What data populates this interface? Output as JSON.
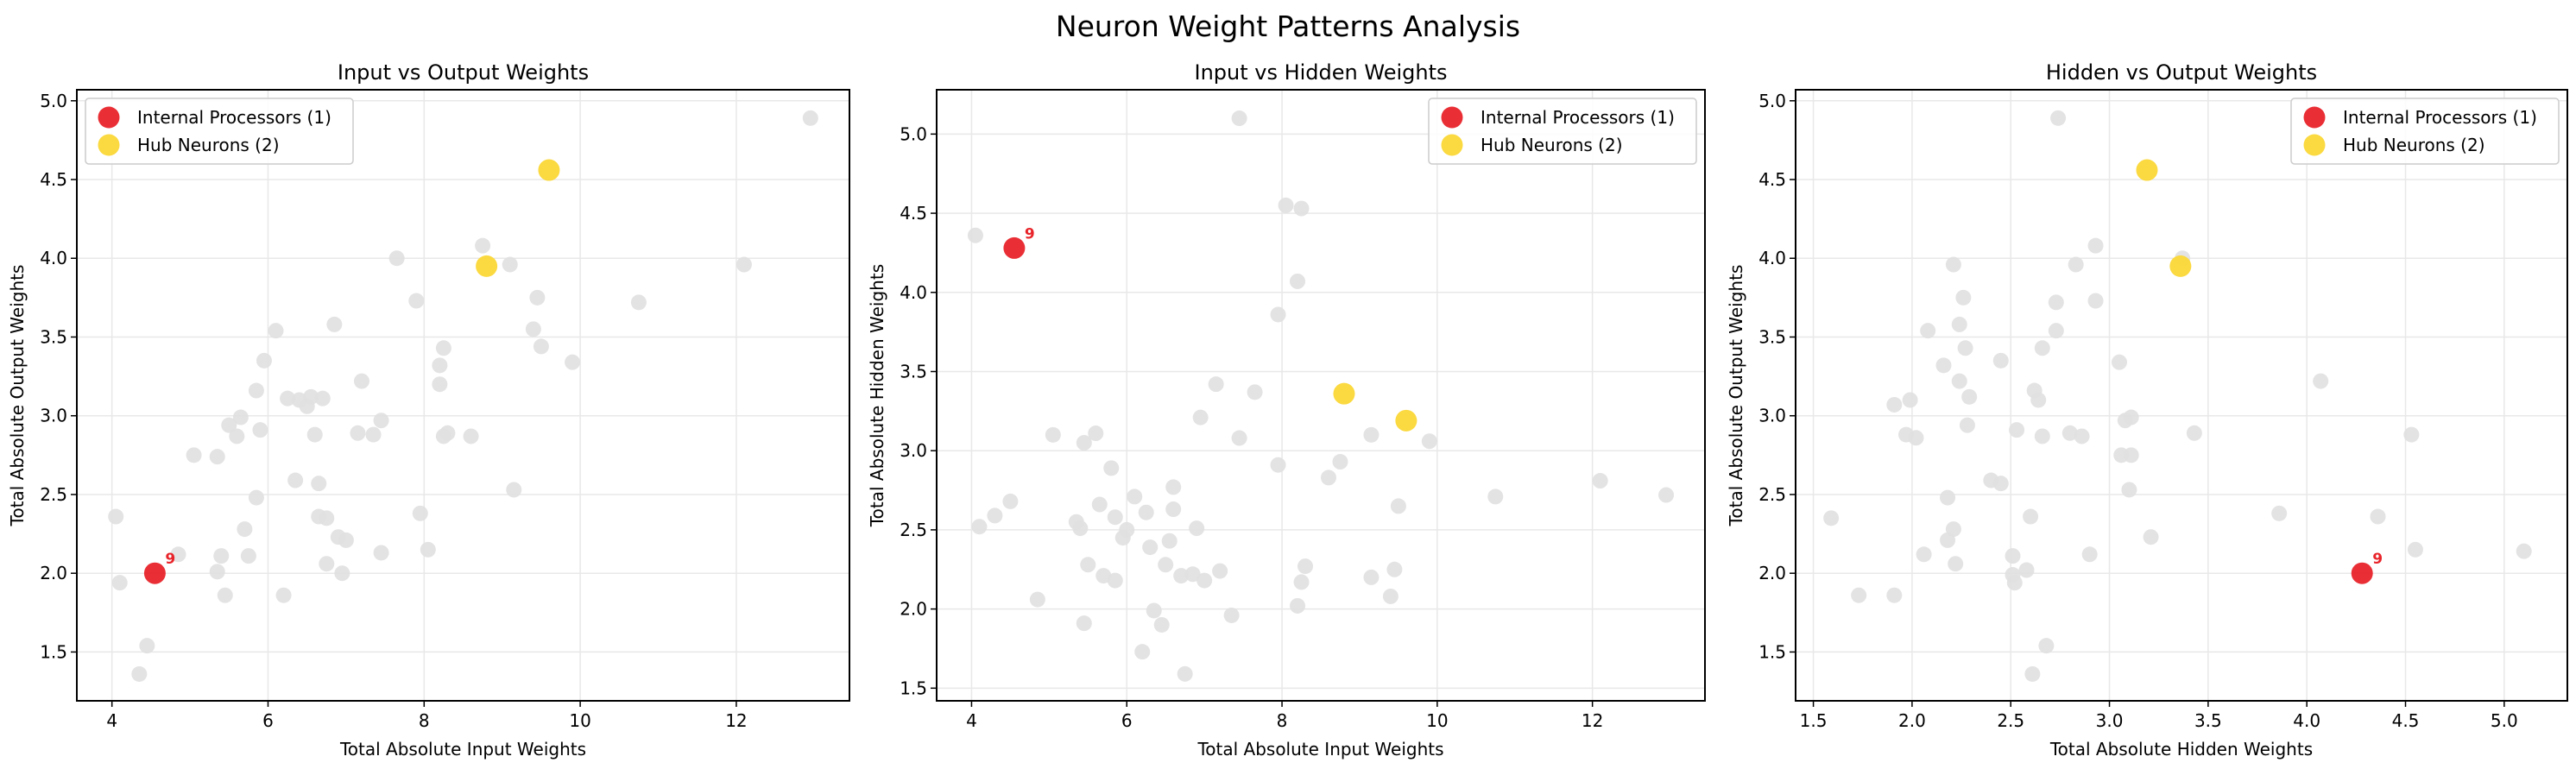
{
  "suptitle": "Neuron Weight Patterns Analysis",
  "colors": {
    "background": "#e0e0e0",
    "internal_processors": "#e8242a",
    "hub_neurons": "#fbd736",
    "grid": "#e8e8e8",
    "axis": "#000000"
  },
  "chart_data": [
    {
      "type": "scatter",
      "title": "Input vs Output Weights",
      "xlabel": "Total Absolute Input Weights",
      "ylabel": "Total Absolute Output Weights",
      "xlim": [
        3.55,
        13.45
      ],
      "ylim": [
        1.19,
        5.07
      ],
      "xticks": [
        4,
        6,
        8,
        10,
        12
      ],
      "yticks": [
        1.5,
        2.0,
        2.5,
        3.0,
        3.5,
        4.0,
        4.5,
        5.0
      ],
      "grid": true,
      "legend_position": "top-left",
      "series": [
        {
          "role": "background",
          "points": [
            [
              4.05,
              2.36
            ],
            [
              4.1,
              1.94
            ],
            [
              4.35,
              1.36
            ],
            [
              4.45,
              1.54
            ],
            [
              4.85,
              2.12
            ],
            [
              5.05,
              2.75
            ],
            [
              5.35,
              2.74
            ],
            [
              5.4,
              2.11
            ],
            [
              5.45,
              1.86
            ],
            [
              5.5,
              2.94
            ],
            [
              5.35,
              2.01
            ],
            [
              5.6,
              2.87
            ],
            [
              5.65,
              2.99
            ],
            [
              5.7,
              2.28
            ],
            [
              5.75,
              2.11
            ],
            [
              5.85,
              3.16
            ],
            [
              5.85,
              2.48
            ],
            [
              5.9,
              2.91
            ],
            [
              5.95,
              3.35
            ],
            [
              6.1,
              3.54
            ],
            [
              6.2,
              1.86
            ],
            [
              6.25,
              3.11
            ],
            [
              6.35,
              2.59
            ],
            [
              6.4,
              3.1
            ],
            [
              6.5,
              3.06
            ],
            [
              6.55,
              3.12
            ],
            [
              6.6,
              2.88
            ],
            [
              6.65,
              2.57
            ],
            [
              6.7,
              3.11
            ],
            [
              6.65,
              2.36
            ],
            [
              6.75,
              2.35
            ],
            [
              6.75,
              2.06
            ],
            [
              6.85,
              3.58
            ],
            [
              6.9,
              2.23
            ],
            [
              6.95,
              2.0
            ],
            [
              7.0,
              2.21
            ],
            [
              7.15,
              2.89
            ],
            [
              7.2,
              3.22
            ],
            [
              7.35,
              2.88
            ],
            [
              7.45,
              2.97
            ],
            [
              7.45,
              2.13
            ],
            [
              7.65,
              4.0
            ],
            [
              7.9,
              3.73
            ],
            [
              7.95,
              2.38
            ],
            [
              8.05,
              2.15
            ],
            [
              8.2,
              3.2
            ],
            [
              8.2,
              3.32
            ],
            [
              8.25,
              2.87
            ],
            [
              8.3,
              2.89
            ],
            [
              8.25,
              3.43
            ],
            [
              8.6,
              2.87
            ],
            [
              8.75,
              4.08
            ],
            [
              9.1,
              3.96
            ],
            [
              9.15,
              2.53
            ],
            [
              9.4,
              3.55
            ],
            [
              9.45,
              3.75
            ],
            [
              9.5,
              3.44
            ],
            [
              9.9,
              3.34
            ],
            [
              10.75,
              3.72
            ],
            [
              12.1,
              3.96
            ],
            [
              12.95,
              4.89
            ]
          ]
        },
        {
          "name": "Internal Processors (1)",
          "role": "internal",
          "points": [
            [
              4.55,
              2.0
            ]
          ],
          "labels": [
            "9"
          ]
        },
        {
          "name": "Hub Neurons (2)",
          "role": "hub",
          "points": [
            [
              8.8,
              3.95
            ],
            [
              9.6,
              4.56
            ]
          ]
        }
      ]
    },
    {
      "type": "scatter",
      "title": "Input vs Hidden Weights",
      "xlabel": "Total Absolute Input Weights",
      "ylabel": "Total Absolute Hidden Weights",
      "xlim": [
        3.55,
        13.45
      ],
      "ylim": [
        1.42,
        5.28
      ],
      "xticks": [
        4,
        6,
        8,
        10,
        12
      ],
      "yticks": [
        1.5,
        2.0,
        2.5,
        3.0,
        3.5,
        4.0,
        4.5,
        5.0
      ],
      "grid": true,
      "legend_position": "top-right",
      "series": [
        {
          "role": "background",
          "points": [
            [
              4.05,
              4.36
            ],
            [
              4.1,
              2.52
            ],
            [
              4.3,
              2.59
            ],
            [
              4.5,
              2.68
            ],
            [
              4.85,
              2.06
            ],
            [
              5.05,
              3.1
            ],
            [
              5.35,
              2.55
            ],
            [
              5.4,
              2.51
            ],
            [
              5.45,
              3.05
            ],
            [
              5.45,
              1.91
            ],
            [
              5.5,
              2.28
            ],
            [
              5.6,
              3.11
            ],
            [
              5.65,
              2.66
            ],
            [
              5.7,
              2.21
            ],
            [
              5.8,
              2.89
            ],
            [
              5.85,
              2.58
            ],
            [
              5.85,
              2.18
            ],
            [
              5.95,
              2.45
            ],
            [
              6.0,
              2.5
            ],
            [
              6.1,
              2.71
            ],
            [
              6.2,
              1.73
            ],
            [
              6.25,
              2.61
            ],
            [
              6.3,
              2.39
            ],
            [
              6.35,
              1.99
            ],
            [
              6.45,
              1.9
            ],
            [
              6.5,
              2.28
            ],
            [
              6.55,
              2.43
            ],
            [
              6.6,
              2.77
            ],
            [
              6.6,
              2.63
            ],
            [
              6.7,
              2.21
            ],
            [
              6.75,
              1.59
            ],
            [
              6.85,
              2.22
            ],
            [
              6.9,
              2.51
            ],
            [
              6.95,
              3.21
            ],
            [
              7.0,
              2.18
            ],
            [
              7.15,
              3.42
            ],
            [
              7.2,
              2.24
            ],
            [
              7.35,
              1.96
            ],
            [
              7.45,
              3.08
            ],
            [
              7.45,
              5.1
            ],
            [
              7.65,
              3.37
            ],
            [
              7.95,
              2.91
            ],
            [
              7.95,
              3.86
            ],
            [
              8.05,
              4.55
            ],
            [
              8.2,
              4.07
            ],
            [
              8.2,
              2.02
            ],
            [
              8.25,
              4.53
            ],
            [
              8.25,
              2.17
            ],
            [
              8.3,
              2.27
            ],
            [
              8.6,
              2.83
            ],
            [
              8.75,
              2.93
            ],
            [
              9.15,
              3.1
            ],
            [
              9.15,
              2.2
            ],
            [
              9.4,
              2.08
            ],
            [
              9.45,
              2.25
            ],
            [
              9.5,
              2.65
            ],
            [
              9.9,
              3.06
            ],
            [
              10.75,
              2.71
            ],
            [
              12.1,
              2.81
            ],
            [
              12.95,
              2.72
            ]
          ]
        },
        {
          "name": "Internal Processors (1)",
          "role": "internal",
          "points": [
            [
              4.55,
              4.28
            ]
          ],
          "labels": [
            "9"
          ]
        },
        {
          "name": "Hub Neurons (2)",
          "role": "hub",
          "points": [
            [
              8.8,
              3.36
            ],
            [
              9.6,
              3.19
            ]
          ]
        }
      ]
    },
    {
      "type": "scatter",
      "title": "Hidden vs Output Weights",
      "xlabel": "Total Absolute Hidden Weights",
      "ylabel": "Total Absolute Output Weights",
      "xlim": [
        1.41,
        5.32
      ],
      "ylim": [
        1.19,
        5.07
      ],
      "xticks": [
        1.5,
        2.0,
        2.5,
        3.0,
        3.5,
        4.0,
        4.5,
        5.0
      ],
      "yticks": [
        1.5,
        2.0,
        2.5,
        3.0,
        3.5,
        4.0,
        4.5,
        5.0
      ],
      "grid": true,
      "legend_position": "top-right",
      "series": [
        {
          "role": "background",
          "points": [
            [
              1.59,
              2.35
            ],
            [
              1.73,
              1.86
            ],
            [
              1.91,
              1.86
            ],
            [
              1.91,
              3.07
            ],
            [
              1.97,
              2.88
            ],
            [
              1.99,
              3.1
            ],
            [
              2.02,
              2.86
            ],
            [
              2.06,
              2.12
            ],
            [
              2.08,
              3.54
            ],
            [
              2.16,
              3.32
            ],
            [
              2.18,
              2.48
            ],
            [
              2.18,
              2.21
            ],
            [
              2.21,
              3.96
            ],
            [
              2.21,
              2.28
            ],
            [
              2.22,
              2.06
            ],
            [
              2.24,
              3.58
            ],
            [
              2.24,
              3.22
            ],
            [
              2.26,
              3.75
            ],
            [
              2.27,
              3.43
            ],
            [
              2.28,
              2.94
            ],
            [
              2.29,
              3.12
            ],
            [
              2.4,
              2.59
            ],
            [
              2.45,
              3.35
            ],
            [
              2.45,
              2.57
            ],
            [
              2.51,
              2.11
            ],
            [
              2.51,
              1.99
            ],
            [
              2.52,
              1.94
            ],
            [
              2.53,
              2.91
            ],
            [
              2.58,
              2.02
            ],
            [
              2.6,
              2.36
            ],
            [
              2.61,
              1.36
            ],
            [
              2.62,
              3.16
            ],
            [
              2.64,
              3.1
            ],
            [
              2.66,
              2.87
            ],
            [
              2.66,
              3.43
            ],
            [
              2.68,
              1.54
            ],
            [
              2.73,
              3.72
            ],
            [
              2.73,
              3.54
            ],
            [
              2.74,
              4.89
            ],
            [
              2.8,
              2.89
            ],
            [
              2.83,
              3.96
            ],
            [
              2.86,
              2.87
            ],
            [
              2.9,
              2.12
            ],
            [
              2.93,
              3.73
            ],
            [
              2.93,
              4.08
            ],
            [
              3.05,
              3.34
            ],
            [
              3.06,
              2.75
            ],
            [
              3.08,
              2.97
            ],
            [
              3.1,
              2.53
            ],
            [
              3.11,
              2.75
            ],
            [
              3.11,
              2.99
            ],
            [
              3.21,
              2.23
            ],
            [
              3.37,
              4.0
            ],
            [
              3.43,
              2.89
            ],
            [
              3.86,
              2.38
            ],
            [
              4.07,
              3.22
            ],
            [
              4.36,
              2.36
            ],
            [
              4.53,
              2.88
            ],
            [
              4.55,
              2.15
            ],
            [
              5.1,
              2.14
            ]
          ]
        },
        {
          "name": "Internal Processors (1)",
          "role": "internal",
          "points": [
            [
              4.28,
              2.0
            ]
          ],
          "labels": [
            "9"
          ]
        },
        {
          "name": "Hub Neurons (2)",
          "role": "hub",
          "points": [
            [
              3.36,
              3.95
            ],
            [
              3.19,
              4.56
            ]
          ]
        }
      ]
    }
  ]
}
